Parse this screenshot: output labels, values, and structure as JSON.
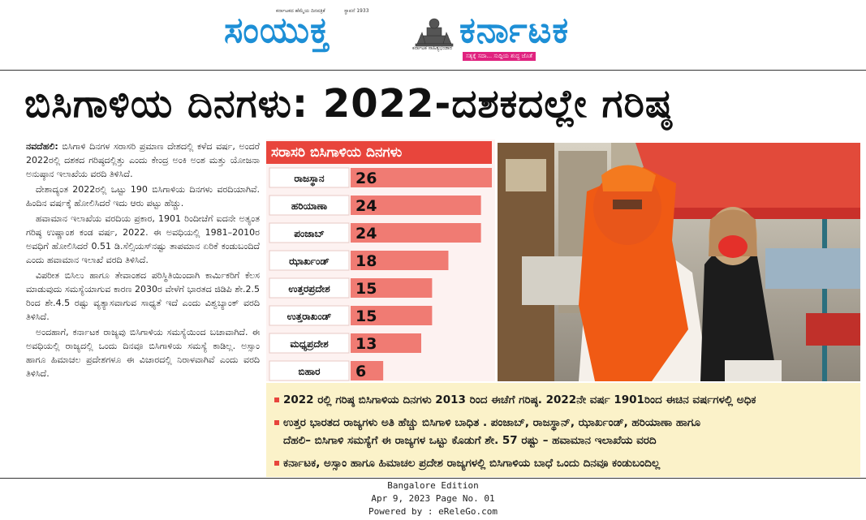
{
  "masthead": {
    "name_left": "ಸಂಯುಕ್ತ",
    "name_right": "ಕರ್ನಾಟಕ",
    "small_top_left": "ಕರ್ನಾಟಕದ ಹೆಮ್ಮೆಯ ದಿನಪತ್ರಿಕೆ",
    "small_top_mid": "ಸ್ಥಾಪನೆ 1933",
    "emblem_caption": "ಕರ್ನಾಟಕ ಸಾಹಿತ್ಯಭಂಡಾರ",
    "tagline": "ಸತ್ಯಕ್ಕೆ ಸದಾ... ಸುದ್ದಿಯ ಶುದ್ಧ ಜೊತೆ",
    "emblem_color": "#555555",
    "brand_color": "#1d8fd6",
    "tag_color": "#e0237f"
  },
  "headline": "ಬಿಸಿಗಾಳಿಯ ದಿನಗಳು: 2022-ದಶಕದಲ್ಲೇ ಗರಿಷ್ಠ",
  "article": {
    "p1_lead": "ನವದೆಹಲಿ:",
    "p1": "ಬಿಸಿಗಾಳಿ ದಿನಗಳ ಸರಾಸರಿ ಪ್ರಮಾಣ ದೇಶದಲ್ಲಿ ಕಳೆದ ವರ್ಷ, ಅಂದರೆ 2022ರಲ್ಲಿ ದಶಕದ ಗರಿಷ್ಠದಲ್ಲಿತ್ತು ಎಂದು ಕೇಂದ್ರ ಅಂಕಿ ಅಂಶ ಮತ್ತು ಯೋಜನಾ ಅನುಷ್ಠಾನ ಇಲಾಖೆಯ ವರದಿ ತಿಳಿಸಿದೆ.",
    "p2": "ದೇಶಾದ್ಯಂತ 2022ರಲ್ಲಿ ಒಟ್ಟು 190 ಬಿಸಿಗಾಳಿಯ ದಿನಗಳು ವರದಿಯಾಗಿವೆ. ಹಿಂದಿನ ವರ್ಷಕ್ಕೆ ಹೋಲಿಸಿದರೆ ಇದು ಆರು ಪಟ್ಟು ಹೆಚ್ಚು.",
    "p3": "ಹವಾಮಾನ ಇಲಾಖೆಯ ವರದಿಯ ಪ್ರಕಾರ, 1901 ರಿಂದೀಚೆಗೆ ಐದನೇ ಅತ್ಯಂತ ಗರಿಷ್ಠ ಉಷ್ಣಾಂಶ ಕಂಡ ವರ್ಷ, 2022. ಈ ಅವಧಿಯಲ್ಲಿ 1981–2010ರ ಅವಧಿಗೆ ಹೋಲಿಸಿದರೆ 0.51 ಡಿ.ಸೆಲ್ಸಿಯಸ್‌ನಷ್ಟು ತಾಪಮಾನ ಏರಿಕೆ ಕಂಡುಬಂದಿದೆ ಎಂದು ಹವಾಮಾನ ಇಲಾಖೆ ವರದಿ ತಿಳಿಸಿದೆ.",
    "p4": "ವಿಪರೀತ ಬಿಸಿಲು ಹಾಗೂ ತೇವಾಂಶದ ಪರಿಸ್ಥಿತಿಯಿಂದಾಗಿ ಕಾರ್ಮಿಕರಿಗೆ ಕೆಲಸ ಮಾಡುವುದು ಸಮಸ್ಯೆಯಾಗುವ ಕಾರಣ 2030ರ ವೇಳೆಗೆ ಭಾರತದ ಜಿಡಿಪಿ ಶೇ.2.5 ರಿಂದ ಶೇ.4.5 ರಷ್ಟು ವ್ಯತ್ಯಾಸವಾಗುವ ಸಾಧ್ಯತೆ ಇದೆ ಎಂದು ವಿಶ್ವಬ್ಯಾಂಕ್ ವರದಿ ತಿಳಿಸಿದೆ.",
    "p5": "ಅಂದಹಾಗೆ, ಕರ್ನಾಟಕ ರಾಜ್ಯವು ಬಿಸಿಗಾಳಿಯ ಸಮಸ್ಯೆಯಿಂದ ಬಚಾವಾಗಿದೆ. ಈ ಅವಧಿಯಲ್ಲಿ ರಾಜ್ಯದಲ್ಲಿ ಒಂದು ದಿನವೂ ಬಿಸಿಗಾಳಿಯ ಸಮಸ್ಯೆ ಕಾಡಿಲ್ಲ. ಅಸ್ಸಾಂ ಹಾಗೂ ಹಿಮಾಚಲ ಪ್ರದೇಶಗಳೂ ಈ ವಿಚಾರದಲ್ಲಿ ನಿರಾಳವಾಗಿವೆ ಎಂದು ವರದಿ ತಿಳಿಸಿದೆ."
  },
  "chart_data": {
    "type": "bar",
    "title": "ಸರಾಸರಿ ಬಿಸಿಗಾಳಿಯ ದಿನಗಳು",
    "categories": [
      "ರಾಜಸ್ಥಾನ",
      "ಹರಿಯಾಣಾ",
      "ಪಂಜಾಬ್",
      "ಝಾರ್ಖಂಡ್",
      "ಉತ್ತರಪ್ರದೇಶ",
      "ಉತ್ತರಾಖಂಡ್",
      "ಮಧ್ಯಪ್ರದೇಶ",
      "ಬಿಹಾರ"
    ],
    "values": [
      26,
      24,
      24,
      18,
      15,
      15,
      13,
      6
    ],
    "orientation": "horizontal",
    "data_labels": true,
    "bar_color": "#f07b73",
    "title_bg": "#e8453c"
  },
  "bullets": [
    "2022 ರಲ್ಲಿ ಗರಿಷ್ಠ ಬಿಸಿಗಾಳಿಯ ದಿನಗಳು 2013 ರಿಂದ ಈಚೆಗೆ ಗರಿಷ್ಠ. 2022ನೇ ವರ್ಷ 1901ರಿಂದ ಈಚಿನ ವರ್ಷಗಳಲ್ಲಿ ಅಧಿಕ",
    "ಉತ್ತರ ಭಾರತದ ರಾಜ್ಯಗಳು ಅತಿ ಹೆಚ್ಚು ಬಿಸಿಗಾಳಿ ಬಾಧಿತ . ಪಂಜಾಬ್, ರಾಜಸ್ಥಾನ್, ಝಾರ್ಖಂಡ್, ಹರಿಯಾಣಾ ಹಾಗೂ",
    "ದೆಹಲಿ– ಬಿಸಿಗಾಳಿ ಸಮಸ್ಯೆಗೆ ಈ ರಾಜ್ಯಗಳ ಒಟ್ಟು ಕೊಡುಗೆ ಶೇ. 57 ರಷ್ಟು – ಹವಾಮಾನ ಇಲಾಖೆಯ ವರದಿ",
    "ಕರ್ನಾಟಕ, ಅಸ್ಸಾಂ ಹಾಗೂ ಹಿಮಾಚಲ ಪ್ರದೇಶ ರಾಜ್ಯಗಳಲ್ಲಿ ಬಿಸಿಗಾಳಿಯ ಬಾಧೆ ಒಂದು ದಿನವೂ ಕಂಡುಬಂದಿಲ್ಲ"
  ],
  "bullet_color": "#e8453c",
  "bullet_bg": "#fbf2c9",
  "footer": {
    "edition": "Bangalore Edition",
    "date_page": "Apr 9, 2023 Page No. 01",
    "powered": "Powered by : eReleGo.com"
  }
}
